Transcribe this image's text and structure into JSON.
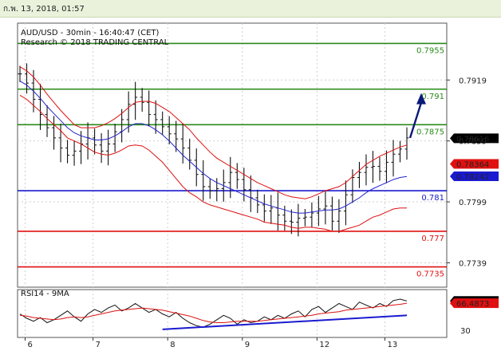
{
  "header": {
    "timestamp": "ก.พ. 13, 2018, 01:57"
  },
  "chart_data": [
    {
      "type": "line",
      "title": "AUD/USD - 30min - 16:40:47 (CET)",
      "subtitle": "Research © 2018 TRADING CENTRAL",
      "x_ticks": [
        "6",
        "7",
        "8",
        "9",
        "12",
        "13"
      ],
      "y_ticks": [
        "0.7919",
        "0.7859",
        "0.7799",
        "0.7739"
      ],
      "ylim": [
        0.7715,
        0.7975
      ],
      "levels": [
        {
          "value": 0.7955,
          "label": "0.7955",
          "color": "#2a8a1a"
        },
        {
          "value": 0.791,
          "label": "0.791",
          "color": "#2a8a1a"
        },
        {
          "value": 0.7875,
          "label": "0.7875",
          "color": "#2a8a1a"
        },
        {
          "value": 0.781,
          "label": "0.781",
          "color": "#1a1ad0"
        },
        {
          "value": 0.777,
          "label": "0.777",
          "color": "#e01010"
        },
        {
          "value": 0.7735,
          "label": "0.7735",
          "color": "#e01010"
        }
      ],
      "price_tags": [
        {
          "value": 0.78616,
          "label": "0.78616",
          "bg": "#000000",
          "fg": "#ffffff"
        },
        {
          "value": 0.78364,
          "label": "0.78364",
          "bg": "#e01010",
          "fg": "#ffffff"
        },
        {
          "value": 0.78242,
          "label": "0.78242",
          "bg": "#1a1ad0",
          "fg": "#ffffff"
        }
      ],
      "series": [
        {
          "values": [
            0.7925,
            0.7916,
            0.79,
            0.7885,
            0.7872,
            0.7862,
            0.7852,
            0.7845,
            0.7849,
            0.7856,
            0.7862,
            0.7855,
            0.7849,
            0.7856,
            0.7868,
            0.788,
            0.7895,
            0.7902,
            0.7897,
            0.7885,
            0.788,
            0.7873,
            0.7866,
            0.7861,
            0.7852,
            0.784,
            0.7826,
            0.7814,
            0.781,
            0.7812,
            0.7818,
            0.7828,
            0.7821,
            0.7811,
            0.7803,
            0.7796,
            0.779,
            0.7793,
            0.7786,
            0.778,
            0.7779,
            0.7783,
            0.7784,
            0.7788,
            0.7792,
            0.7795,
            0.778,
            0.779,
            0.7806,
            0.7823,
            0.7828,
            0.7833,
            0.7834,
            0.7829,
            0.7838,
            0.7846,
            0.7851,
            0.7862
          ]
        },
        {
          "color": "#2222cc",
          "values": [
            0.7918,
            0.7914,
            0.7908,
            0.7901,
            0.7893,
            0.7886,
            0.7879,
            0.7872,
            0.7867,
            0.7864,
            0.7862,
            0.786,
            0.786,
            0.7861,
            0.7864,
            0.7868,
            0.7873,
            0.7876,
            0.7876,
            0.7874,
            0.787,
            0.7865,
            0.7859,
            0.7852,
            0.7845,
            0.7839,
            0.7833,
            0.7827,
            0.7822,
            0.7818,
            0.7815,
            0.7812,
            0.7809,
            0.7806,
            0.7803,
            0.78,
            0.7797,
            0.7795,
            0.7793,
            0.7791,
            0.7789,
            0.7788,
            0.7788,
            0.7789,
            0.779,
            0.7791,
            0.7791,
            0.7792,
            0.7795,
            0.7799,
            0.7803,
            0.7808,
            0.7812,
            0.7815,
            0.7818,
            0.7821,
            0.7823,
            0.7824
          ]
        },
        {
          "color": "#dd1111",
          "values": [
            0.7932,
            0.7928,
            0.7922,
            0.7914,
            0.7905,
            0.7897,
            0.7889,
            0.7882,
            0.7875,
            0.7872,
            0.7872,
            0.7872,
            0.7874,
            0.7877,
            0.7881,
            0.7886,
            0.7892,
            0.7897,
            0.7898,
            0.7898,
            0.7896,
            0.7892,
            0.7888,
            0.7882,
            0.7876,
            0.787,
            0.7862,
            0.7855,
            0.7848,
            0.7842,
            0.7838,
            0.7834,
            0.783,
            0.7826,
            0.7822,
            0.7818,
            0.7815,
            0.7812,
            0.7809,
            0.7806,
            0.7804,
            0.7803,
            0.7802,
            0.7804,
            0.7807,
            0.781,
            0.7812,
            0.7814,
            0.7818,
            0.7824,
            0.783,
            0.7836,
            0.784,
            0.7844,
            0.7847,
            0.785,
            0.7853,
            0.7855
          ]
        },
        {
          "color": "#dd1111",
          "values": [
            0.7904,
            0.79,
            0.7894,
            0.7888,
            0.7881,
            0.7875,
            0.7869,
            0.7862,
            0.7859,
            0.7856,
            0.7852,
            0.7848,
            0.7846,
            0.7845,
            0.7847,
            0.785,
            0.7854,
            0.7855,
            0.7854,
            0.785,
            0.7844,
            0.7838,
            0.783,
            0.7822,
            0.7814,
            0.7808,
            0.7804,
            0.7799,
            0.7796,
            0.7794,
            0.7792,
            0.779,
            0.7788,
            0.7786,
            0.7784,
            0.7782,
            0.7779,
            0.7778,
            0.7777,
            0.7776,
            0.7774,
            0.7773,
            0.7774,
            0.7774,
            0.7773,
            0.7772,
            0.777,
            0.777,
            0.7772,
            0.7774,
            0.7776,
            0.778,
            0.7784,
            0.7786,
            0.7789,
            0.7792,
            0.7793,
            0.7793
          ]
        }
      ],
      "forecast_arrow": {
        "from": 0.7862,
        "to": 0.7903,
        "color": "#0a1a7a"
      }
    },
    {
      "type": "line",
      "title": "RSI14 - 9MA",
      "y_ticks": [
        "30"
      ],
      "ylim": [
        20,
        85
      ],
      "price_tags": [
        {
          "value": 69.5443,
          "label": "69.5443",
          "bg": "#000000",
          "fg": "#ffffff"
        },
        {
          "value": 66.4873,
          "label": "66.4873",
          "bg": "#e01010",
          "fg": "#ffffff"
        }
      ],
      "series": [
        {
          "color": "#111111",
          "values": [
            52,
            46,
            42,
            47,
            40,
            44,
            50,
            56,
            48,
            42,
            52,
            58,
            54,
            60,
            64,
            56,
            60,
            66,
            60,
            54,
            58,
            52,
            48,
            54,
            46,
            40,
            36,
            34,
            38,
            44,
            50,
            46,
            38,
            44,
            40,
            42,
            48,
            44,
            50,
            46,
            52,
            56,
            48,
            58,
            62,
            54,
            60,
            66,
            62,
            58,
            68,
            64,
            60,
            66,
            62,
            70,
            72,
            69.5
          ]
        },
        {
          "color": "#dd1111",
          "values": [
            50,
            49,
            47,
            46,
            45,
            44,
            45,
            47,
            48,
            47,
            48,
            50,
            52,
            54,
            56,
            57,
            58,
            59,
            60,
            59,
            58,
            57,
            55,
            53,
            51,
            49,
            46,
            43,
            41,
            40,
            40,
            41,
            42,
            42,
            42,
            42,
            43,
            44,
            45,
            46,
            47,
            48,
            49,
            50,
            52,
            53,
            54,
            55,
            57,
            58,
            59,
            60,
            61,
            62,
            63,
            64,
            65,
            66.5
          ]
        }
      ],
      "trendline": {
        "from": 31,
        "to": 50,
        "color": "#1a1ad0"
      }
    }
  ]
}
